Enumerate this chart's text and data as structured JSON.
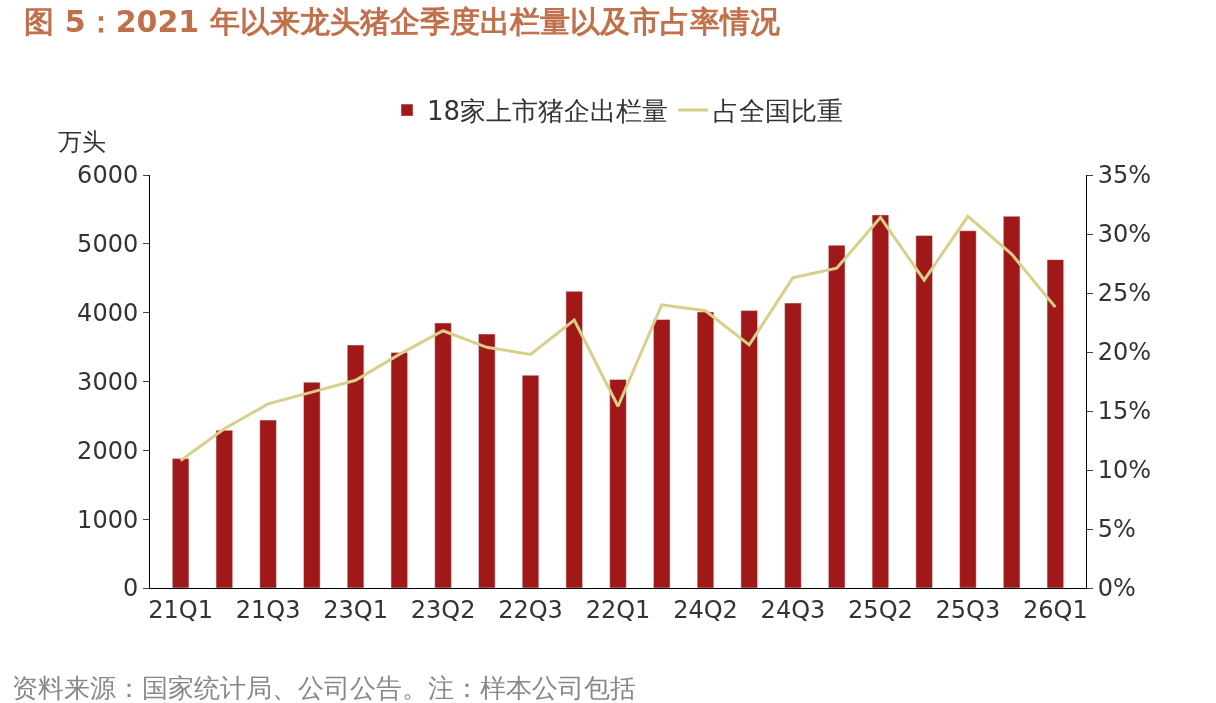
{
  "chart_data": {
    "type": "bar",
    "title": "图 5：2021 年以来龙头猪企季度出栏量以及市占率情况",
    "ylabel": "万头",
    "categories": [
      "21Q1",
      null,
      "21Q3",
      null,
      "23Q1",
      null,
      "23Q2",
      null,
      "22Q3",
      null,
      "22Q1",
      null,
      "24Q2",
      null,
      "24Q3",
      null,
      "25Q2",
      null,
      "25Q3",
      null,
      "26Q1"
    ],
    "series": [
      {
        "name": "18家上市猪企出栏量",
        "color": "#a01818",
        "values": [
          1880,
          2290,
          2440,
          2990,
          3530,
          3420,
          3850,
          3690,
          3090,
          4310,
          3030,
          3900,
          4010,
          4030,
          4140,
          4980,
          5420,
          5120,
          5190,
          5400,
          4770
        ]
      },
      {
        "name": "占全国比重",
        "type": "line",
        "axis": "y2",
        "color": "#d8cf8a",
        "marker": "none",
        "line_style": "solid",
        "values": [
          10.8,
          13.5,
          15.6,
          16.6,
          17.6,
          19.8,
          21.8,
          20.4,
          19.8,
          22.7,
          15.4,
          24.0,
          23.5,
          20.6,
          26.3,
          27.1,
          31.4,
          26.1,
          31.5,
          28.3,
          23.8
        ]
      }
    ],
    "ylim": [
      0,
      6000
    ],
    "yticks": [
      0,
      1000,
      2000,
      3000,
      4000,
      5000,
      6000
    ],
    "y2lim": [
      0,
      35
    ],
    "y2ticks": [
      {
        "value": 0,
        "label": "0%"
      },
      {
        "value": 5,
        "label": "5%"
      },
      {
        "value": 10,
        "label": "10%"
      },
      {
        "value": 15,
        "label": "15%"
      },
      {
        "value": 20,
        "label": "20%"
      },
      {
        "value": 25,
        "label": "25%"
      },
      {
        "value": 30,
        "label": "30%"
      },
      {
        "value": 35,
        "label": "35%"
      }
    ],
    "legend": "top",
    "annotations": [
      "资料来源：国家统计局、公司公告。注：样本公司包括"
    ]
  }
}
